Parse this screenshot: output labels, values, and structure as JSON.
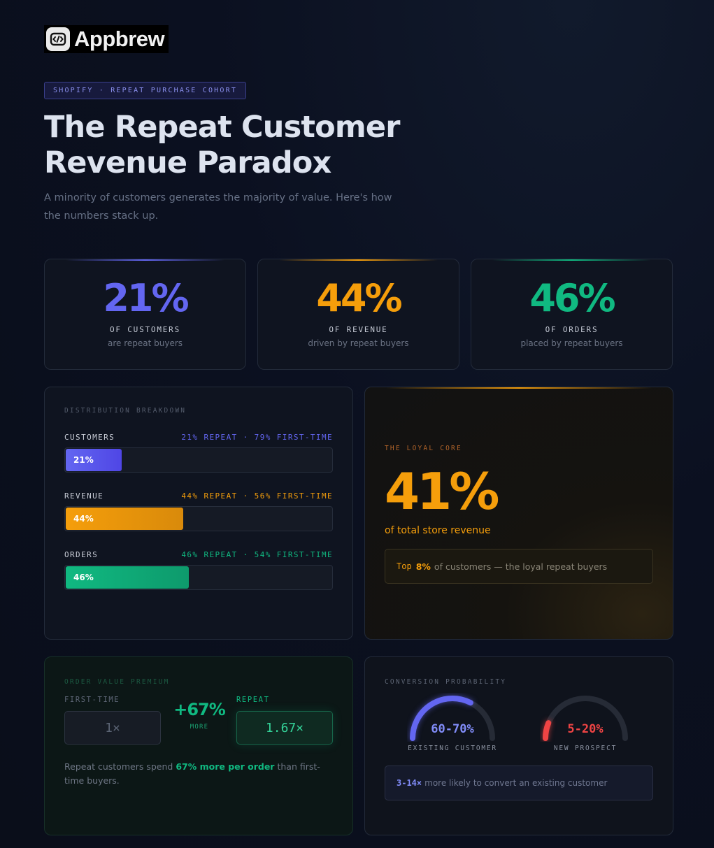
{
  "brand": {
    "name": "Appbrew",
    "icon": "appbrew-logo-icon"
  },
  "tag": "SHOPIFY · REPEAT PURCHASE COHORT",
  "title_line1": "The Repeat Customer",
  "title_line2": "Revenue Paradox",
  "subtitle": "A minority of customers generates the majority of value. Here's how the numbers stack up.",
  "colors": {
    "indigo": "#6366f1",
    "amber": "#f59e0b",
    "green": "#10b981",
    "red": "#ef4444"
  },
  "stats": [
    {
      "value": "21%",
      "label": "OF CUSTOMERS",
      "sub": "are repeat buyers"
    },
    {
      "value": "44%",
      "label": "OF REVENUE",
      "sub": "driven by repeat buyers"
    },
    {
      "value": "46%",
      "label": "OF ORDERS",
      "sub": "placed by repeat buyers"
    }
  ],
  "distribution": {
    "title": "DISTRIBUTION BREAKDOWN",
    "rows": [
      {
        "name": "CUSTOMERS",
        "split": "21% REPEAT · 79% FIRST-TIME",
        "fill_label": "21%",
        "repeat_fraction": 0.21
      },
      {
        "name": "REVENUE",
        "split": "44% REPEAT · 56% FIRST-TIME",
        "fill_label": "44%",
        "repeat_fraction": 0.44
      },
      {
        "name": "ORDERS",
        "split": "46% REPEAT · 54% FIRST-TIME",
        "fill_label": "46%",
        "repeat_fraction": 0.46
      }
    ]
  },
  "loyal": {
    "title": "THE LOYAL CORE",
    "value": "41%",
    "desc": "of total store revenue",
    "note_top": "Top",
    "note_pct": "8%",
    "note_text": "of customers — the loyal repeat buyers"
  },
  "order_value": {
    "title": "ORDER VALUE PREMIUM",
    "first_label": "FIRST-TIME",
    "first_value": "1×",
    "premium": "+67%",
    "premium_sub": "MORE",
    "repeat_label": "REPEAT",
    "repeat_value": "1.67×",
    "text_pre": "Repeat customers spend",
    "text_bold": "67% more per order",
    "text_post": "than first-time buyers."
  },
  "conversion": {
    "title": "CONVERSION PROBABILITY",
    "gauges": [
      {
        "value": "60-70%",
        "label": "EXISTING CUSTOMER",
        "level": 0.65
      },
      {
        "value": "5-20%",
        "label": "NEW PROSPECT",
        "level": 0.125
      }
    ],
    "note_bold": "3-14×",
    "note_text": "more likely to convert an existing customer"
  }
}
